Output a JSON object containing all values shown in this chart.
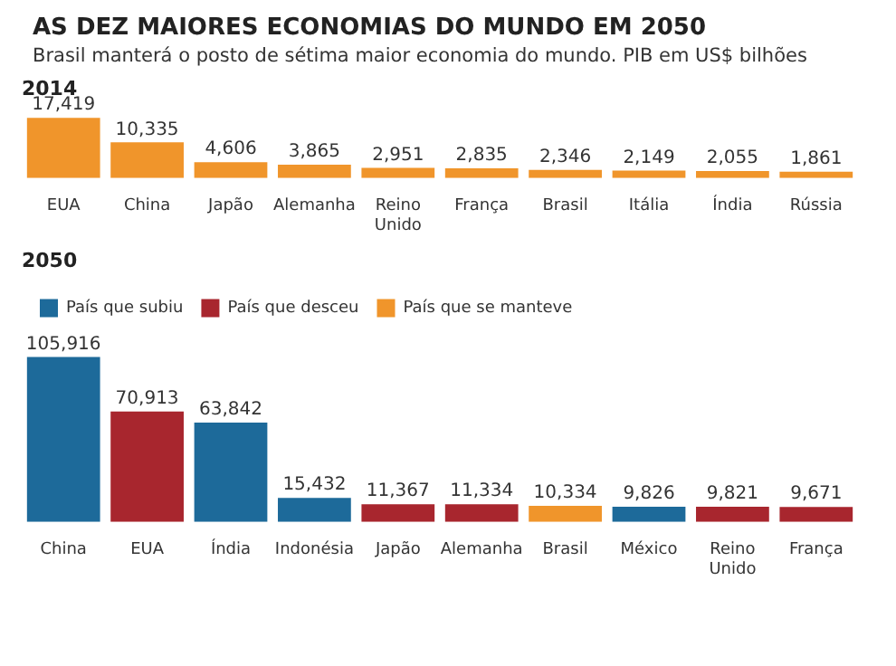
{
  "chart_data": [
    {
      "type": "other",
      "title": "AS DEZ MAIORES ECONOMIAS DO MUNDO EM 2050",
      "subtitle": "Brasil manterá o posto de sétima maior economia do mundo. PIB em US$ bilhões"
    },
    {
      "type": "bar",
      "title": "2014",
      "categories": [
        "EUA",
        "China",
        "Japão",
        "Alemanha",
        "Reino Unido",
        "França",
        "Brasil",
        "Itália",
        "Índia",
        "Rússia"
      ],
      "values": [
        17419,
        10335,
        4606,
        3865,
        2951,
        2835,
        2346,
        2149,
        2055,
        1861
      ],
      "value_labels": [
        "17,419",
        "10,335",
        "4,606",
        "3,865",
        "2,951",
        "2,835",
        "2,346",
        "2,149",
        "2,055",
        "1,861"
      ],
      "color": "#f0952b",
      "tick_labels": "x",
      "legend": false
    },
    {
      "type": "bar",
      "title": "2050",
      "categories": [
        "China",
        "EUA",
        "Índia",
        "Indonésia",
        "Japão",
        "Alemanha",
        "Brasil",
        "México",
        "Reino Unido",
        "França"
      ],
      "tick_labels": "x",
      "legend": "top left",
      "series": [
        {
          "name": "País que subiu",
          "color": "#1d6a9a",
          "values": [
            105916,
            null,
            63842,
            15432,
            null,
            null,
            null,
            9826,
            null,
            null
          ],
          "value_labels": [
            "105,916",
            null,
            "63,842",
            "15,432",
            null,
            null,
            null,
            "9,826",
            null,
            null
          ]
        },
        {
          "name": "País que desceu",
          "color": "#a8262e",
          "values": [
            null,
            70913,
            null,
            null,
            11367,
            11334,
            null,
            null,
            9821,
            9671
          ],
          "value_labels": [
            null,
            "70,913",
            null,
            null,
            "11,367",
            "11,334",
            null,
            null,
            "9,821",
            "9,671"
          ]
        },
        {
          "name": "País que se manteve",
          "color": "#f0952b",
          "values": [
            null,
            null,
            null,
            null,
            null,
            null,
            10334,
            null,
            null,
            null
          ],
          "value_labels": [
            null,
            null,
            null,
            null,
            null,
            null,
            "10,334",
            null,
            null,
            null
          ]
        }
      ]
    }
  ]
}
